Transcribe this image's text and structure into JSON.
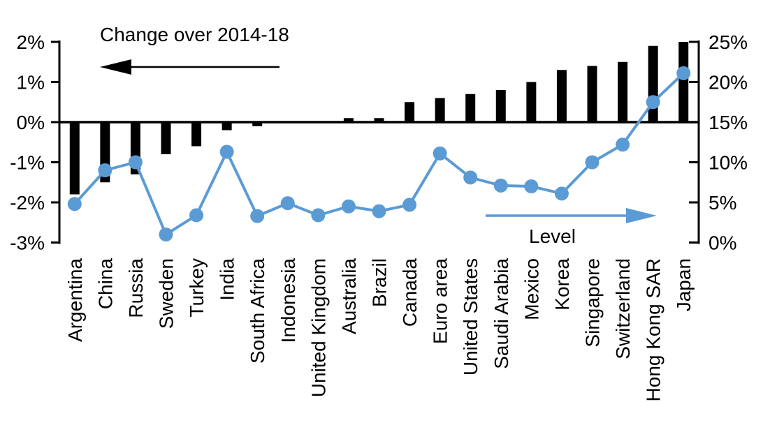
{
  "chart_data": {
    "type": "combo-bar-line",
    "title": "",
    "categories": [
      "Argentina",
      "China",
      "Russia",
      "Sweden",
      "Turkey",
      "India",
      "South Africa",
      "Indonesia",
      "United Kingdom",
      "Australia",
      "Brazil",
      "Canada",
      "Euro area",
      "United States",
      "Saudi Arabia",
      "Mexico",
      "Korea",
      "Singapore",
      "Switzerland",
      "Hong Kong SAR",
      "Japan"
    ],
    "series": [
      {
        "name": "Change over 2014-18",
        "type": "bar",
        "axis": "left",
        "color": "#000000",
        "values": [
          -1.8,
          -1.5,
          -1.3,
          -0.8,
          -0.6,
          -0.2,
          -0.1,
          0,
          0,
          0.1,
          0.1,
          0.5,
          0.6,
          0.7,
          0.8,
          1.0,
          1.3,
          1.4,
          1.5,
          1.9,
          2.0
        ]
      },
      {
        "name": "Level",
        "type": "line",
        "axis": "right",
        "color": "#5B9BD5",
        "values": [
          4.8,
          9,
          10,
          1,
          3.4,
          11.3,
          3.3,
          4.9,
          3.4,
          4.5,
          3.9,
          4.7,
          11.1,
          8.1,
          7.1,
          7,
          6.1,
          10,
          12.2,
          17.5,
          21.1
        ]
      }
    ],
    "left_axis": {
      "min": -3,
      "max": 2,
      "tick_values": [
        2,
        1,
        0,
        -1,
        -2,
        -3
      ],
      "tick_labels": [
        "2%",
        "1%",
        "0%",
        "-1%",
        "-2%",
        "-3%"
      ]
    },
    "right_axis": {
      "min": 0,
      "max": 25,
      "tick_values": [
        25,
        20,
        15,
        10,
        5,
        0
      ],
      "tick_labels": [
        "25%",
        "20%",
        "15%",
        "10%",
        "5%",
        "0%"
      ]
    },
    "grid": false,
    "annotations": [
      {
        "text": "Change over 2014-18",
        "arrow_direction": "left",
        "color": "#000000"
      },
      {
        "text": "Level",
        "arrow_direction": "right",
        "color": "#5B9BD5"
      }
    ]
  }
}
